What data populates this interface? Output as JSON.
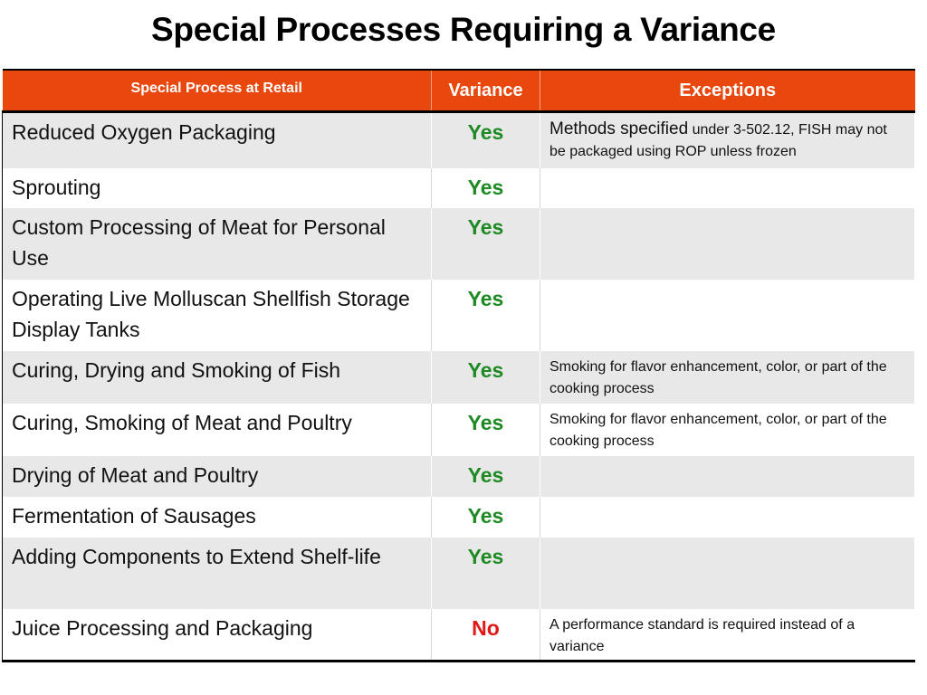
{
  "title": "Special Processes Requiring a Variance",
  "table": {
    "headers": {
      "process": "Special Process at Retail",
      "variance": "Variance",
      "exceptions": "Exceptions"
    },
    "rows": [
      {
        "process": "Reduced Oxygen Packaging",
        "variance": "Yes",
        "exception_lead": "Methods specified",
        "exception": " under 3-502.12, FISH may not be packaged using ROP unless  frozen"
      },
      {
        "process": "Sprouting",
        "variance": "Yes",
        "exception_lead": "",
        "exception": ""
      },
      {
        "process": "Custom Processing of Meat for Personal Use",
        "variance": "Yes",
        "exception_lead": "",
        "exception": ""
      },
      {
        "process": "Operating Live Molluscan Shellfish Storage Display Tanks",
        "variance": "Yes",
        "exception_lead": "",
        "exception": ""
      },
      {
        "process": "Curing, Drying and Smoking of Fish",
        "variance": "Yes",
        "exception_lead": "",
        "exception": "Smoking for flavor enhancement, color, or  part of the cooking process"
      },
      {
        "process": "Curing, Smoking of Meat and Poultry",
        "variance": "Yes",
        "exception_lead": "",
        "exception": "Smoking for flavor enhancement, color, or  part of the cooking process"
      },
      {
        "process": "Drying of Meat and Poultry",
        "variance": "Yes",
        "exception_lead": "",
        "exception": ""
      },
      {
        "process": "Fermentation of Sausages",
        "variance": "Yes",
        "exception_lead": "",
        "exception": ""
      },
      {
        "process": "Adding Components to Extend Shelf-life",
        "variance": "Yes",
        "exception_lead": "",
        "exception": ""
      },
      {
        "process": "Juice Processing and Packaging",
        "variance": "No",
        "exception_lead": "",
        "exception": "A performance standard is required instead of a variance"
      }
    ]
  },
  "colors": {
    "header_bg": "#e8470e",
    "yes": "#1e8a23",
    "no": "#e01818",
    "row_shade": "#e8e8e8"
  }
}
